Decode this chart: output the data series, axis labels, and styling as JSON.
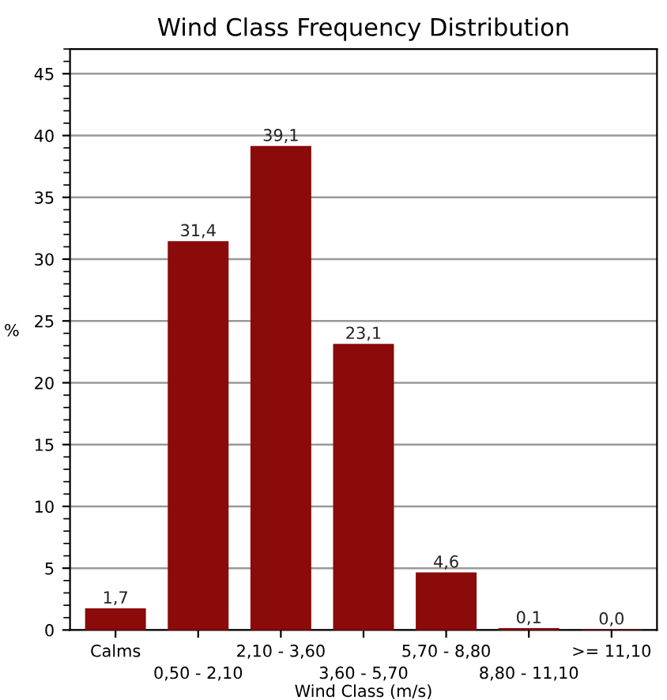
{
  "chart_data": {
    "type": "bar",
    "title": "Wind Class Frequency Distribution",
    "xlabel": "Wind Class (m/s)",
    "ylabel": "%",
    "categories": [
      "Calms",
      "0,50 - 2,10",
      "2,10 - 3,60",
      "3,60 - 5,70",
      "5,70 - 8,80",
      "8,80 - 11,10",
      ">= 11,10"
    ],
    "values": [
      1.7,
      31.4,
      39.1,
      23.1,
      4.6,
      0.1,
      0.0
    ],
    "value_labels": [
      "1,7",
      "31,4",
      "39,1",
      "23,1",
      "4,6",
      "0,1",
      "0,0"
    ],
    "color": "#8b0a0a",
    "ylim": [
      0,
      47
    ],
    "yticks": [
      0,
      5,
      10,
      15,
      20,
      25,
      30,
      35,
      40,
      45
    ],
    "grid": "y"
  }
}
